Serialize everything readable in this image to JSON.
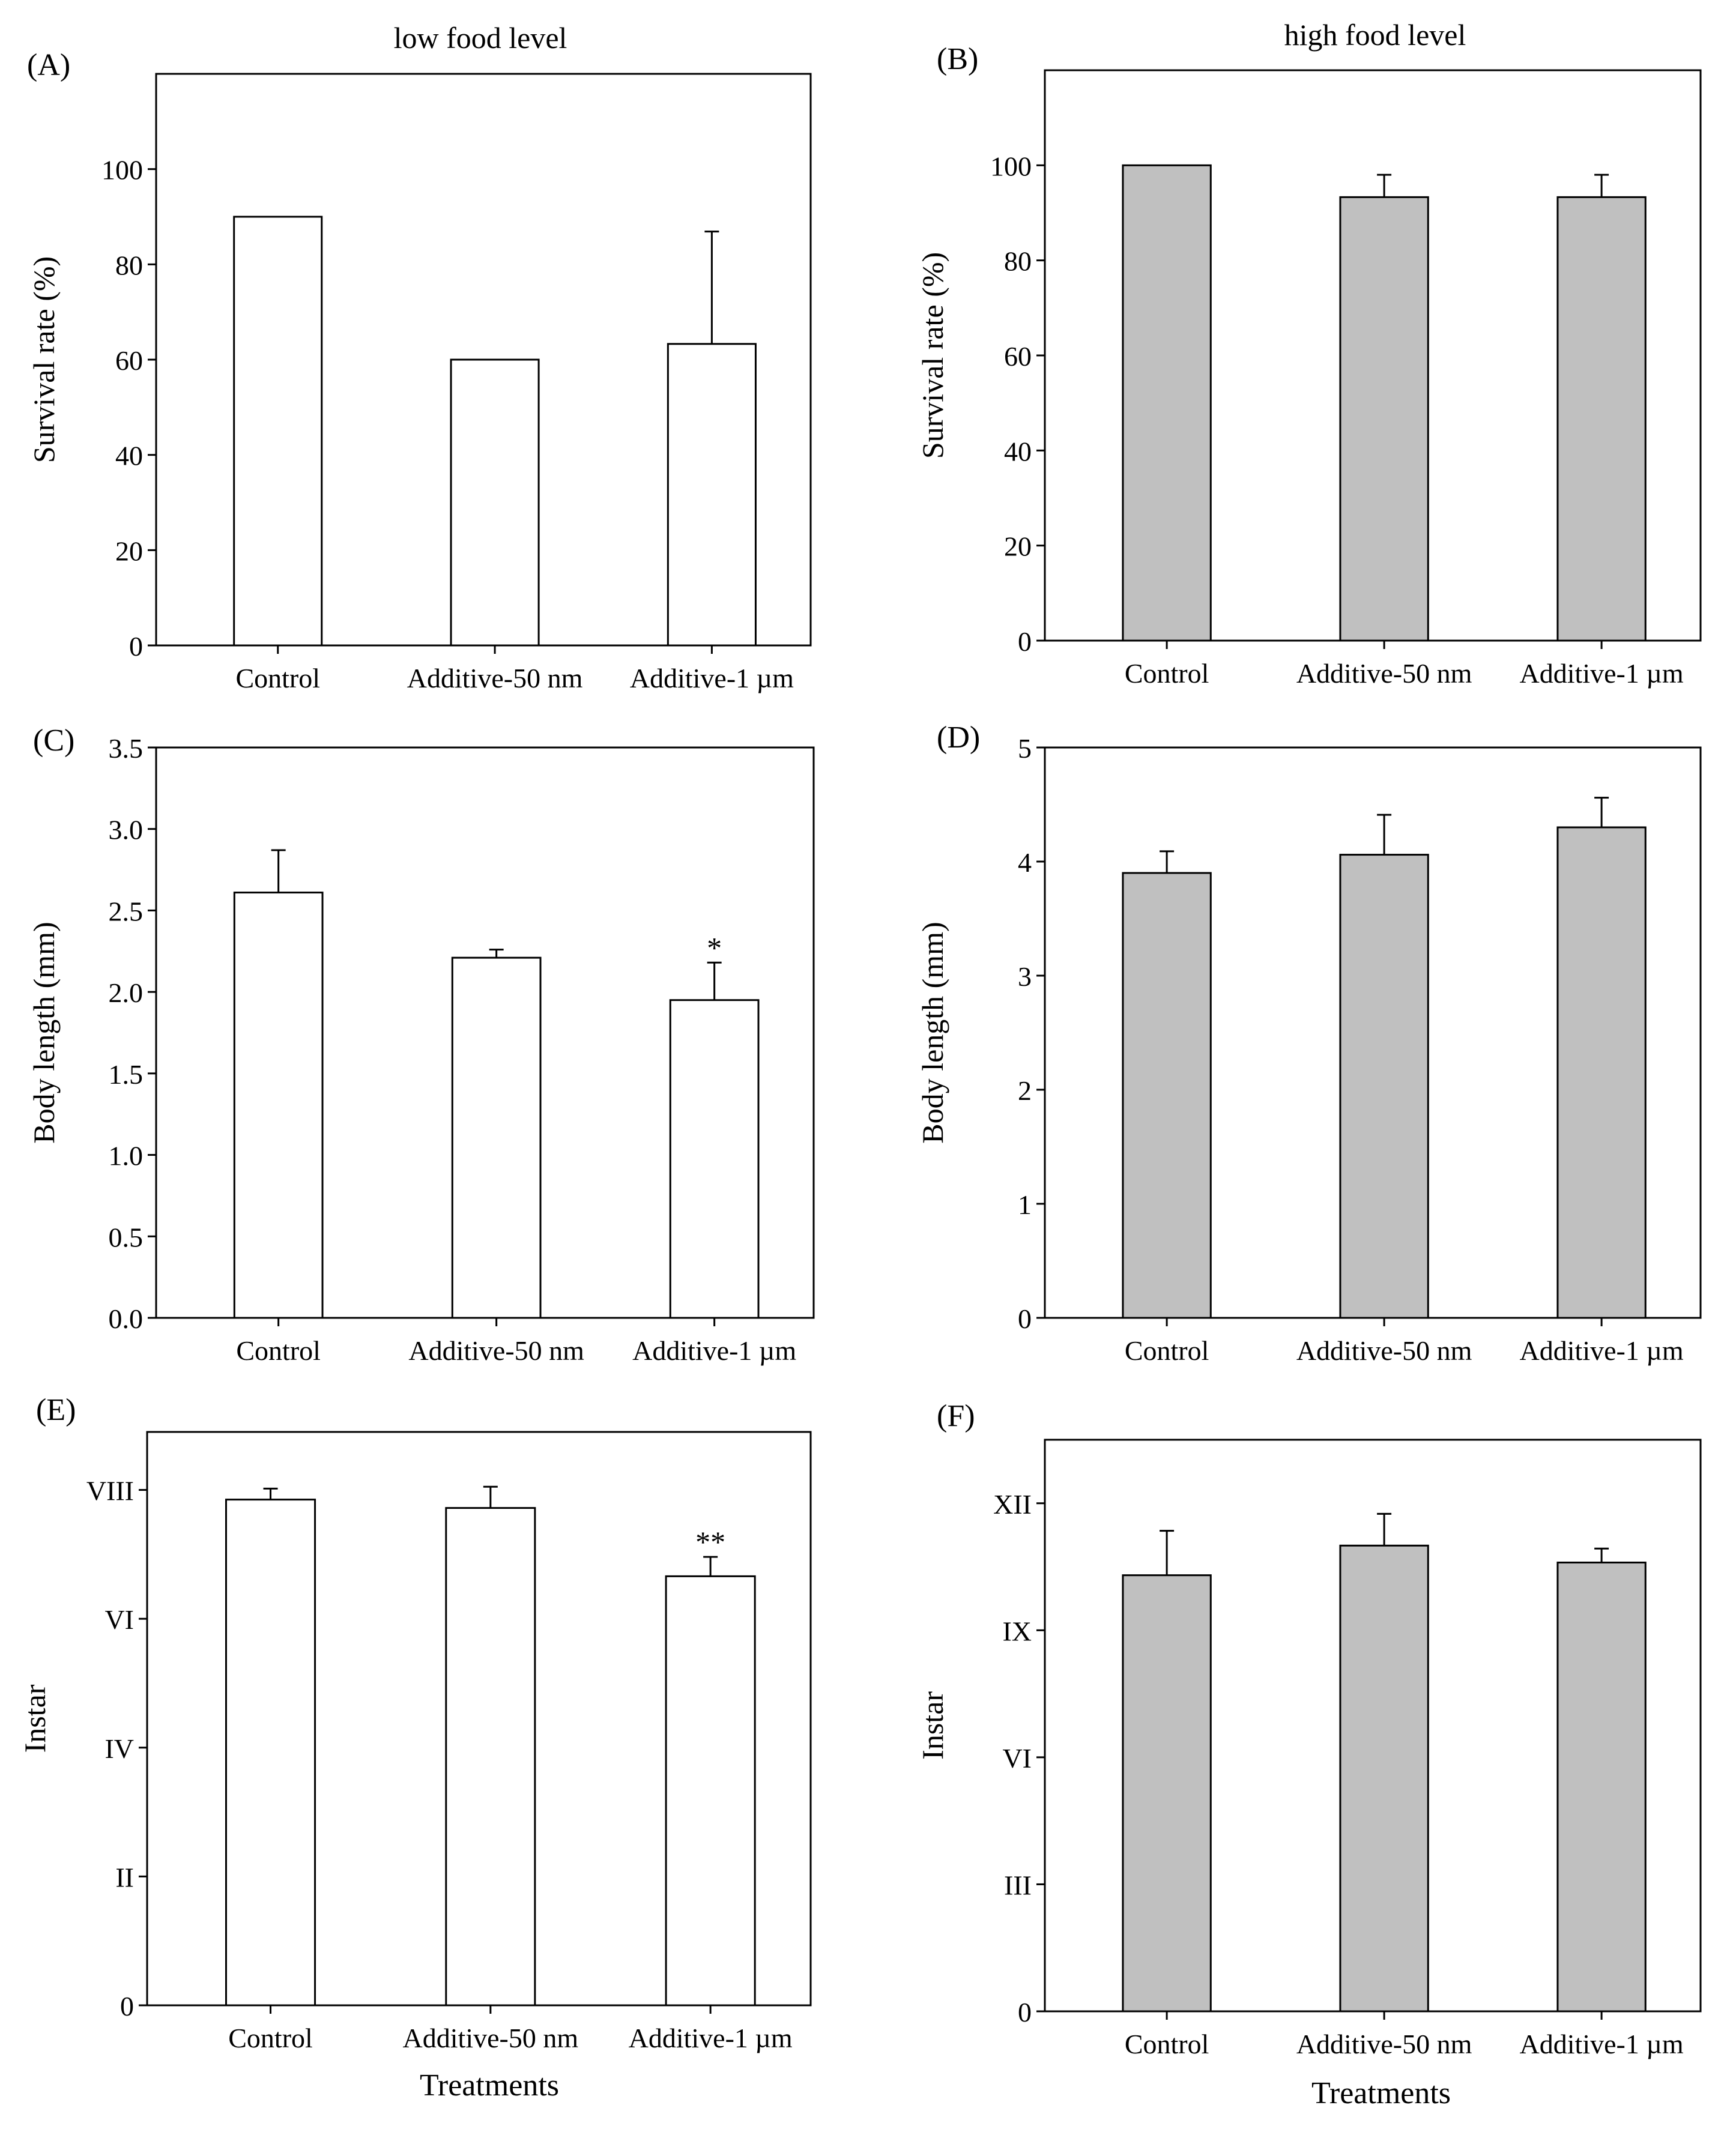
{
  "column_titles": [
    "low food level",
    "high food level"
  ],
  "xlabel_common": "Treatments",
  "chart_data": [
    {
      "panel": "(A)",
      "type": "bar",
      "fill": "#ffffff",
      "categories": [
        "Control",
        "Additive-50 nm",
        "Additive-1 µm"
      ],
      "values": [
        90,
        60,
        63.3
      ],
      "errors": [
        0,
        0,
        23.6
      ],
      "ylabel": "Survival rate (%)",
      "ylim": [
        0,
        120
      ],
      "yticks": [
        0,
        20,
        40,
        60,
        80,
        100
      ],
      "ytick_labels": [
        "0",
        "20",
        "40",
        "60",
        "80",
        "100"
      ],
      "annotations": [
        "",
        "",
        ""
      ]
    },
    {
      "panel": "(B)",
      "type": "bar",
      "fill": "#c0c0c0",
      "categories": [
        "Control",
        "Additive-50 nm",
        "Additive-1 µm"
      ],
      "values": [
        100,
        93.3,
        93.3
      ],
      "errors": [
        0,
        4.7,
        4.7
      ],
      "ylabel": "Survival rate (%)",
      "ylim": [
        0,
        120
      ],
      "yticks": [
        0,
        20,
        40,
        60,
        80,
        100
      ],
      "ytick_labels": [
        "0",
        "20",
        "40",
        "60",
        "80",
        "100"
      ],
      "annotations": [
        "",
        "",
        ""
      ]
    },
    {
      "panel": "(C)",
      "type": "bar",
      "fill": "#ffffff",
      "categories": [
        "Control",
        "Additive-50 nm",
        "Additive-1 µm"
      ],
      "values": [
        2.61,
        2.21,
        1.95
      ],
      "errors": [
        0.26,
        0.05,
        0.23
      ],
      "ylabel": "Body length (mm)",
      "ylim": [
        0,
        3.5
      ],
      "yticks": [
        0,
        0.5,
        1.0,
        1.5,
        2.0,
        2.5,
        3.0,
        3.5
      ],
      "ytick_labels": [
        "0.0",
        "0.5",
        "1.0",
        "1.5",
        "2.0",
        "2.5",
        "3.0",
        "3.5"
      ],
      "annotations": [
        "",
        "",
        "*"
      ]
    },
    {
      "panel": "(D)",
      "type": "bar",
      "fill": "#c0c0c0",
      "categories": [
        "Control",
        "Additive-50 nm",
        "Additive-1 µm"
      ],
      "values": [
        3.9,
        4.06,
        4.3
      ],
      "errors": [
        0.19,
        0.35,
        0.26
      ],
      "ylabel": "Body length (mm)",
      "ylim": [
        0,
        5
      ],
      "yticks": [
        0,
        1,
        2,
        3,
        4,
        5
      ],
      "ytick_labels": [
        "0",
        "1",
        "2",
        "3",
        "4",
        "5"
      ],
      "annotations": [
        "",
        "",
        ""
      ]
    },
    {
      "panel": "(E)",
      "type": "bar",
      "fill": "#ffffff",
      "categories": [
        "Control",
        "Additive-50 nm",
        "Additive-1 µm"
      ],
      "values": [
        7.85,
        7.72,
        6.66
      ],
      "errors": [
        0.17,
        0.33,
        0.3
      ],
      "ylabel": "Instar",
      "ylim": [
        0,
        8.9
      ],
      "yticks": [
        0,
        2,
        4,
        6,
        8
      ],
      "ytick_labels": [
        "0",
        "II",
        "IV",
        "VI",
        "VIII"
      ],
      "annotations": [
        "",
        "",
        "**"
      ]
    },
    {
      "panel": "(F)",
      "type": "bar",
      "fill": "#c0c0c0",
      "categories": [
        "Control",
        "Additive-50 nm",
        "Additive-1 µm"
      ],
      "values": [
        10.3,
        11.0,
        10.6
      ],
      "errors": [
        1.05,
        0.75,
        0.33
      ],
      "ylabel": "Instar",
      "ylim": [
        0,
        13.5
      ],
      "yticks": [
        0,
        3,
        6,
        9,
        12
      ],
      "ytick_labels": [
        "0",
        "III",
        "VI",
        "IX",
        "XII"
      ],
      "annotations": [
        "",
        "",
        ""
      ]
    }
  ]
}
